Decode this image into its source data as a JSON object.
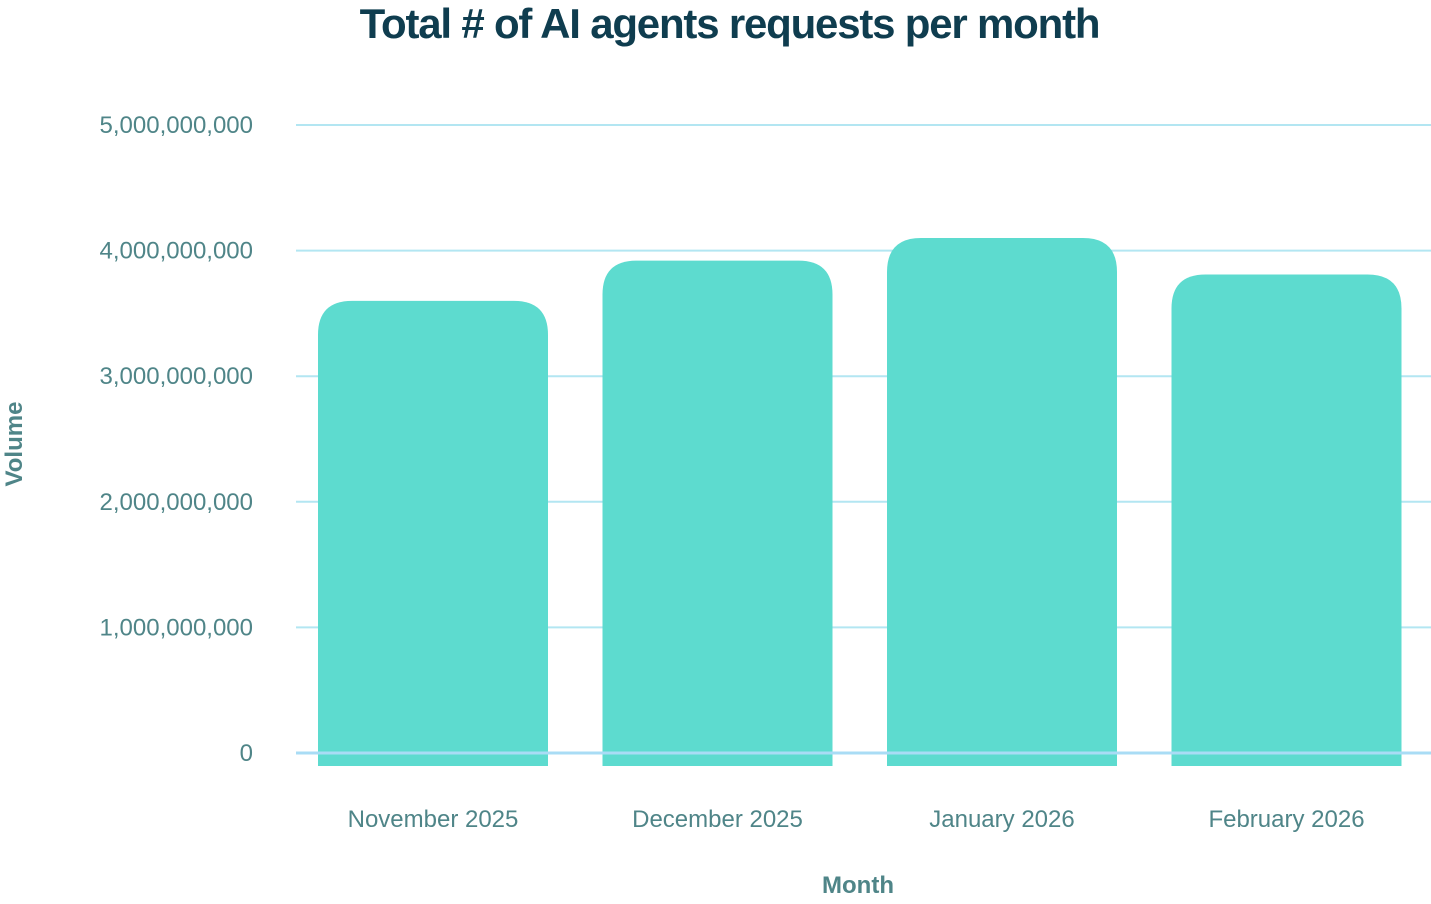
{
  "chart_data": {
    "type": "bar",
    "title": "Total # of AI agents requests per month",
    "xlabel": "Month",
    "ylabel": "Volume",
    "categories": [
      "November 2025",
      "December 2025",
      "January 2026",
      "February 2026"
    ],
    "values": [
      3600000000,
      3920000000,
      4100000000,
      3810000000
    ],
    "ylim": [
      0,
      5000000000
    ],
    "yticks": [
      0,
      1000000000,
      2000000000,
      3000000000,
      4000000000,
      5000000000
    ],
    "ytick_labels": [
      "0",
      "1,000,000,000",
      "2,000,000,000",
      "3,000,000,000",
      "4,000,000,000",
      "5,000,000,000"
    ],
    "grid": true,
    "legend": "none",
    "colors": {
      "bar": "#5ddbcf",
      "grid": "#b3e6f2",
      "baseline": "#a9dcf5",
      "title": "#0f3d4f",
      "label": "#4f8588"
    }
  }
}
